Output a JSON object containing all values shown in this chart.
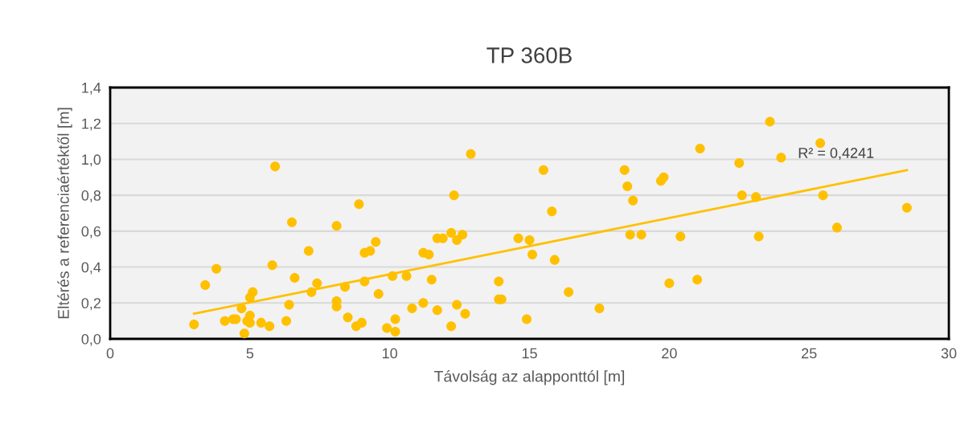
{
  "chart_data": {
    "type": "scatter",
    "title": "TP 360B",
    "xlabel": "Távolság az alapponttól [m]",
    "ylabel": "Eltérés a referenciaértéktől [m]",
    "series": [
      {
        "marker": "circle",
        "color": "#ffc000",
        "x": [
          3.0,
          3.4,
          3.8,
          4.1,
          4.4,
          4.5,
          4.7,
          4.8,
          4.9,
          5.0,
          5.0,
          5.0,
          5.1,
          5.4,
          5.7,
          5.8,
          5.9,
          6.3,
          6.4,
          6.5,
          6.6,
          7.1,
          7.2,
          7.4,
          8.1,
          8.1,
          8.1,
          8.4,
          8.5,
          8.8,
          8.9,
          9.0,
          9.1,
          9.1,
          9.3,
          9.5,
          9.6,
          9.9,
          10.1,
          10.2,
          10.2,
          10.6,
          10.8,
          11.2,
          11.2,
          11.4,
          11.5,
          11.7,
          11.7,
          11.9,
          12.2,
          12.2,
          12.3,
          12.4,
          12.4,
          12.6,
          12.7,
          12.9,
          13.9,
          13.9,
          14.0,
          14.6,
          14.9,
          15.0,
          15.1,
          15.5,
          15.8,
          15.9,
          16.4,
          17.5,
          18.4,
          18.5,
          18.6,
          18.7,
          19.0,
          19.7,
          19.8,
          20.0,
          20.4,
          21.0,
          21.1,
          22.5,
          22.6,
          23.1,
          23.2,
          23.6,
          24.0,
          25.4,
          25.5,
          26.0,
          28.5
        ],
        "values": [
          0.08,
          0.3,
          0.39,
          0.1,
          0.11,
          0.11,
          0.17,
          0.03,
          0.1,
          0.13,
          0.23,
          0.09,
          0.26,
          0.09,
          0.07,
          0.41,
          0.96,
          0.1,
          0.19,
          0.65,
          0.34,
          0.49,
          0.26,
          0.31,
          0.63,
          0.21,
          0.18,
          0.29,
          0.12,
          0.07,
          0.75,
          0.09,
          0.48,
          0.32,
          0.49,
          0.54,
          0.25,
          0.06,
          0.35,
          0.11,
          0.04,
          0.35,
          0.17,
          0.48,
          0.2,
          0.47,
          0.33,
          0.56,
          0.16,
          0.56,
          0.59,
          0.07,
          0.8,
          0.55,
          0.19,
          0.58,
          0.14,
          1.03,
          0.32,
          0.22,
          0.22,
          0.56,
          0.11,
          0.55,
          0.47,
          0.94,
          0.71,
          0.44,
          0.26,
          0.17,
          0.94,
          0.85,
          0.58,
          0.77,
          0.58,
          0.88,
          0.9,
          0.31,
          0.57,
          0.33,
          1.06,
          0.98,
          0.8,
          0.79,
          0.57,
          1.21,
          1.01,
          1.09,
          0.8,
          0.62,
          0.73
        ]
      },
      {
        "type": "line",
        "color": "#ffc000",
        "x": [
          3.0,
          28.5
        ],
        "values": [
          0.14,
          0.94
        ]
      }
    ],
    "annotations": [
      "R² = 0,4241"
    ],
    "xlim": [
      0,
      30
    ],
    "xticks": [
      0,
      5,
      10,
      15,
      20,
      25,
      30
    ],
    "ylim": [
      0,
      1.4
    ],
    "yticks": [
      {
        "value": 0,
        "label": "0,0"
      },
      {
        "value": 0.2,
        "label": "0,2"
      },
      {
        "value": 0.4,
        "label": "0,4"
      },
      {
        "value": 0.6,
        "label": "0,6"
      },
      {
        "value": 0.8,
        "label": "0,8"
      },
      {
        "value": 1.0,
        "label": "1,0"
      },
      {
        "value": 1.2,
        "label": "1,2"
      },
      {
        "value": 1.4,
        "label": "1,4"
      }
    ],
    "grid": "y",
    "legend": false
  }
}
